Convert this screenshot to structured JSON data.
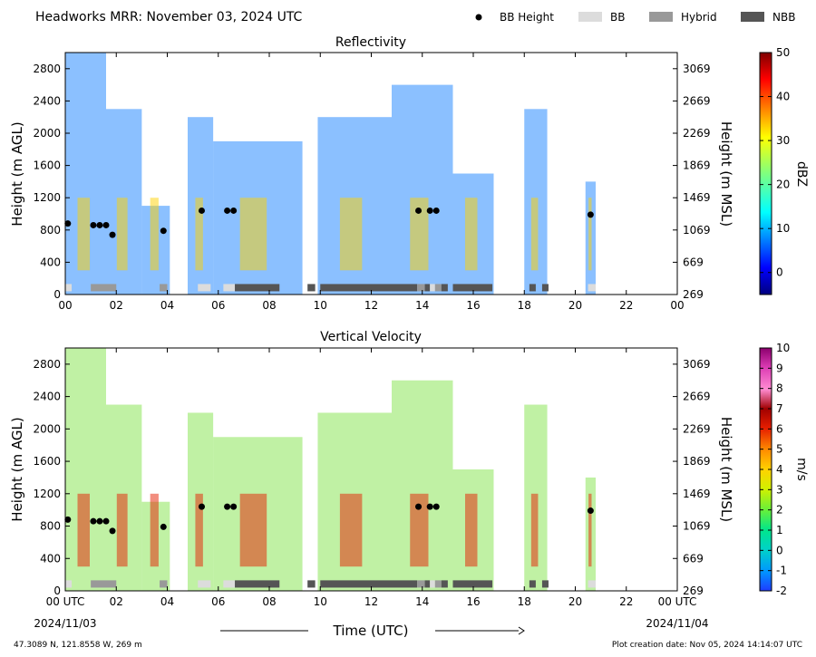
{
  "header": {
    "title": "Headworks MRR:  November 03, 2024 UTC",
    "legend": [
      {
        "label": "BB Height",
        "kind": "dot",
        "color": "#000000"
      },
      {
        "label": "BB",
        "kind": "swatch",
        "color": "#dcdcdc"
      },
      {
        "label": "Hybrid",
        "kind": "swatch",
        "color": "#999999"
      },
      {
        "label": "NBB",
        "kind": "swatch",
        "color": "#555555"
      }
    ]
  },
  "footer": {
    "location": "47.3089 N, 121.8558 W, 269 m",
    "creation": "Plot creation date: Nov 05, 2024 14:14:07 UTC",
    "xlabel": "Time (UTC)",
    "start_date": "2024/11/03",
    "end_date": "2024/11/04"
  },
  "colors": {
    "bb": "#dcdcdc",
    "hybrid": "#999999",
    "nbb": "#555555",
    "bb_height": "#000000"
  },
  "chart_data": [
    {
      "type": "heatmap",
      "title": "Reflectivity",
      "ylabel": "Height (m AGL)",
      "y2label": "Height (m MSL)",
      "xlim": [
        0,
        24
      ],
      "ylim": [
        0,
        3000
      ],
      "x_ticks": [
        "00",
        "02",
        "04",
        "06",
        "08",
        "10",
        "12",
        "14",
        "16",
        "18",
        "20",
        "22",
        "00"
      ],
      "y_ticks": [
        "0",
        "400",
        "800",
        "1200",
        "1600",
        "2000",
        "2400",
        "2800"
      ],
      "y2_ticks": [
        "269",
        "669",
        "1069",
        "1469",
        "1869",
        "2269",
        "2669",
        "3069"
      ],
      "colorbar": {
        "label": "dBZ",
        "range": [
          -5,
          50
        ],
        "ticks": [
          "0",
          "10",
          "20",
          "30",
          "40",
          "50"
        ]
      },
      "bb_height_points": [
        [
          0.1,
          880
        ],
        [
          1.1,
          860
        ],
        [
          1.35,
          860
        ],
        [
          1.6,
          860
        ],
        [
          1.85,
          740
        ],
        [
          3.85,
          790
        ],
        [
          5.35,
          1040
        ],
        [
          6.35,
          1040
        ],
        [
          6.6,
          1040
        ],
        [
          13.85,
          1040
        ],
        [
          14.3,
          1040
        ],
        [
          14.55,
          1040
        ],
        [
          20.6,
          990
        ]
      ],
      "bb_type_bars": [
        {
          "start": 0.0,
          "end": 0.25,
          "type": "BB"
        },
        {
          "start": 1.0,
          "end": 2.0,
          "type": "Hybrid"
        },
        {
          "start": 3.7,
          "end": 4.0,
          "type": "Hybrid"
        },
        {
          "start": 5.2,
          "end": 5.7,
          "type": "BB"
        },
        {
          "start": 6.2,
          "end": 6.65,
          "type": "BB"
        },
        {
          "start": 6.65,
          "end": 8.4,
          "type": "NBB"
        },
        {
          "start": 9.5,
          "end": 9.8,
          "type": "NBB"
        },
        {
          "start": 10.0,
          "end": 13.8,
          "type": "NBB"
        },
        {
          "start": 13.8,
          "end": 14.1,
          "type": "Hybrid"
        },
        {
          "start": 14.1,
          "end": 14.3,
          "type": "NBB"
        },
        {
          "start": 14.3,
          "end": 14.5,
          "type": "BB"
        },
        {
          "start": 14.5,
          "end": 14.75,
          "type": "Hybrid"
        },
        {
          "start": 14.75,
          "end": 15.0,
          "type": "NBB"
        },
        {
          "start": 15.2,
          "end": 16.75,
          "type": "NBB"
        },
        {
          "start": 18.2,
          "end": 18.45,
          "type": "NBB"
        },
        {
          "start": 18.7,
          "end": 18.95,
          "type": "NBB"
        },
        {
          "start": 20.5,
          "end": 20.8,
          "type": "BB"
        }
      ]
    },
    {
      "type": "heatmap",
      "title": "Vertical Velocity",
      "ylabel": "Height (m AGL)",
      "y2label": "Height (m MSL)",
      "xlim": [
        0,
        24
      ],
      "ylim": [
        0,
        3000
      ],
      "x_ticks": [
        "00 UTC",
        "02",
        "04",
        "06",
        "08",
        "10",
        "12",
        "14",
        "16",
        "18",
        "20",
        "22",
        "00 UTC"
      ],
      "y_ticks": [
        "0",
        "400",
        "800",
        "1200",
        "1600",
        "2000",
        "2400",
        "2800"
      ],
      "y2_ticks": [
        "269",
        "669",
        "1069",
        "1469",
        "1869",
        "2269",
        "2669",
        "3069"
      ],
      "colorbar": {
        "label": "m/s",
        "range": [
          -2,
          10
        ],
        "ticks": [
          "-2",
          "-1",
          "0",
          "1",
          "2",
          "3",
          "4",
          "5",
          "6",
          "7",
          "8",
          "9",
          "10"
        ]
      },
      "bb_height_points": [
        [
          0.1,
          880
        ],
        [
          1.1,
          860
        ],
        [
          1.35,
          860
        ],
        [
          1.6,
          860
        ],
        [
          1.85,
          740
        ],
        [
          3.85,
          790
        ],
        [
          5.35,
          1040
        ],
        [
          6.35,
          1040
        ],
        [
          6.6,
          1040
        ],
        [
          13.85,
          1040
        ],
        [
          14.3,
          1040
        ],
        [
          14.55,
          1040
        ],
        [
          20.6,
          990
        ]
      ],
      "bb_type_bars": [
        {
          "start": 0.0,
          "end": 0.25,
          "type": "BB"
        },
        {
          "start": 1.0,
          "end": 2.0,
          "type": "Hybrid"
        },
        {
          "start": 3.7,
          "end": 4.0,
          "type": "Hybrid"
        },
        {
          "start": 5.2,
          "end": 5.7,
          "type": "BB"
        },
        {
          "start": 6.2,
          "end": 6.65,
          "type": "BB"
        },
        {
          "start": 6.65,
          "end": 8.4,
          "type": "NBB"
        },
        {
          "start": 9.5,
          "end": 9.8,
          "type": "NBB"
        },
        {
          "start": 10.0,
          "end": 13.8,
          "type": "NBB"
        },
        {
          "start": 13.8,
          "end": 14.1,
          "type": "Hybrid"
        },
        {
          "start": 14.1,
          "end": 14.3,
          "type": "NBB"
        },
        {
          "start": 14.3,
          "end": 14.5,
          "type": "BB"
        },
        {
          "start": 14.5,
          "end": 14.75,
          "type": "Hybrid"
        },
        {
          "start": 14.75,
          "end": 15.0,
          "type": "NBB"
        },
        {
          "start": 15.2,
          "end": 16.75,
          "type": "NBB"
        },
        {
          "start": 18.2,
          "end": 18.45,
          "type": "NBB"
        },
        {
          "start": 18.7,
          "end": 18.95,
          "type": "NBB"
        },
        {
          "start": 20.5,
          "end": 20.8,
          "type": "BB"
        }
      ]
    }
  ]
}
